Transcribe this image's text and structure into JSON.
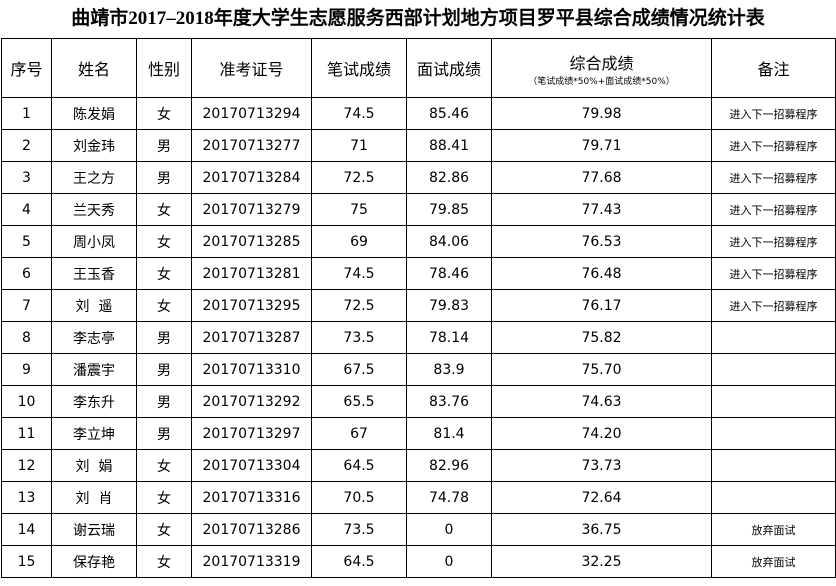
{
  "title": "曲靖市2017–2018年度大学生志愿服务西部计划地方项目罗平县综合成绩情况统计表",
  "table": {
    "headers": [
      "序号",
      "姓名",
      "性别",
      "准考证号",
      "笔试成绩",
      "面试成绩",
      "综合成绩",
      "备注"
    ],
    "composite_note": "（笔试成绩*50%+面试成绩*50%）",
    "rows": [
      {
        "no": "1",
        "name": "陈发娟",
        "gender": "女",
        "id": "20170713294",
        "written": "74.5",
        "interview": "85.46",
        "total": "79.98",
        "remark": "进入下一招募程序"
      },
      {
        "no": "2",
        "name": "刘金玮",
        "gender": "男",
        "id": "20170713277",
        "written": "71",
        "interview": "88.41",
        "total": "79.71",
        "remark": "进入下一招募程序"
      },
      {
        "no": "3",
        "name": "王之方",
        "gender": "男",
        "id": "20170713284",
        "written": "72.5",
        "interview": "82.86",
        "total": "77.68",
        "remark": "进入下一招募程序"
      },
      {
        "no": "4",
        "name": "兰天秀",
        "gender": "女",
        "id": "20170713279",
        "written": "75",
        "interview": "79.85",
        "total": "77.43",
        "remark": "进入下一招募程序"
      },
      {
        "no": "5",
        "name": "周小凤",
        "gender": "女",
        "id": "20170713285",
        "written": "69",
        "interview": "84.06",
        "total": "76.53",
        "remark": "进入下一招募程序"
      },
      {
        "no": "6",
        "name": "王玉香",
        "gender": "女",
        "id": "20170713281",
        "written": "74.5",
        "interview": "78.46",
        "total": "76.48",
        "remark": "进入下一招募程序"
      },
      {
        "no": "7",
        "name": "刘  遥",
        "gender": "女",
        "id": "20170713295",
        "written": "72.5",
        "interview": "79.83",
        "total": "76.17",
        "remark": "进入下一招募程序"
      },
      {
        "no": "8",
        "name": "李志亭",
        "gender": "男",
        "id": "20170713287",
        "written": "73.5",
        "interview": "78.14",
        "total": "75.82"
      },
      {
        "no": "9",
        "name": "潘震宇",
        "gender": "男",
        "id": "20170713310",
        "written": "67.5",
        "interview": "83.9",
        "total": "75.70"
      },
      {
        "no": "10",
        "name": "李东升",
        "gender": "男",
        "id": "20170713292",
        "written": "65.5",
        "interview": "83.76",
        "total": "74.63"
      },
      {
        "no": "11",
        "name": "李立坤",
        "gender": "男",
        "id": "20170713297",
        "written": "67",
        "interview": "81.4",
        "total": "74.20"
      },
      {
        "no": "12",
        "name": "刘  娟",
        "gender": "女",
        "id": "20170713304",
        "written": "64.5",
        "interview": "82.96",
        "total": "73.73"
      },
      {
        "no": "13",
        "name": "刘  肖",
        "gender": "女",
        "id": "20170713316",
        "written": "70.5",
        "interview": "74.78",
        "total": "72.64"
      },
      {
        "no": "14",
        "name": "谢云瑞",
        "gender": "女",
        "id": "20170713286",
        "written": "73.5",
        "interview": "0",
        "total": "36.75",
        "remark": "放弃面试"
      },
      {
        "no": "15",
        "name": "保存艳",
        "gender": "女",
        "id": "20170713319",
        "written": "64.5",
        "interview": "0",
        "total": "32.25",
        "remark": "放弃面试"
      }
    ]
  }
}
